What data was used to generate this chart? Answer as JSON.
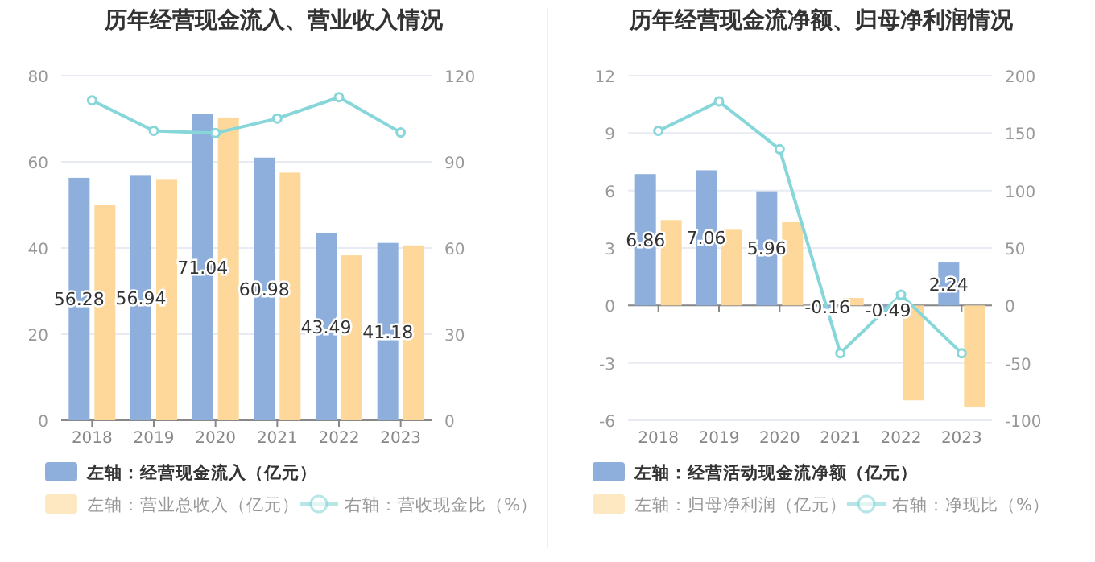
{
  "chart_data": [
    {
      "type": "bar",
      "title": "历年经营现金流入、营业收入情况",
      "categories": [
        "2018",
        "2019",
        "2020",
        "2021",
        "2022",
        "2023"
      ],
      "series": [
        {
          "name": "左轴：经营现金流入（亿元）",
          "color": "#8eaedc",
          "values": [
            56.28,
            56.94,
            71.04,
            60.98,
            43.49,
            41.18
          ],
          "value_labels": [
            "56.28",
            "56.94",
            "71.04",
            "60.98",
            "43.49",
            "41.18"
          ]
        },
        {
          "name": "左轴：营业总收入（亿元）",
          "color": "#fdd89a",
          "values": [
            50.0,
            56.0,
            70.3,
            57.5,
            38.3,
            40.6
          ]
        },
        {
          "name": "右轴：营收现金比（%）",
          "type": "line",
          "axis": "y2",
          "marker": "circle",
          "color": "#86d6da",
          "values": [
            111.4,
            100.8,
            100.0,
            105.1,
            112.5,
            100.2
          ]
        }
      ],
      "ylim": [
        0,
        80
      ],
      "yticks": [
        0,
        20,
        40,
        60,
        80
      ],
      "y2lim": [
        0,
        120
      ],
      "y2ticks": [
        0,
        30,
        60,
        90,
        120
      ],
      "grid": "y",
      "legend": "bottom"
    },
    {
      "type": "bar",
      "title": "历年经营现金流净额、归母净利润情况",
      "categories": [
        "2018",
        "2019",
        "2020",
        "2021",
        "2022",
        "2023"
      ],
      "series": [
        {
          "name": "左轴：经营活动现金流净额（亿元）",
          "color": "#8eaedc",
          "values": [
            6.86,
            7.06,
            5.96,
            -0.16,
            -0.49,
            2.24
          ],
          "value_labels": [
            "6.86",
            "7.06",
            "5.96",
            "-0.16",
            "-0.49",
            "2.24"
          ]
        },
        {
          "name": "左轴：归母净利润（亿元）",
          "color": "#fdd89a",
          "values": [
            4.46,
            3.95,
            4.35,
            0.39,
            -4.96,
            -5.33
          ]
        },
        {
          "name": "右轴：净现比（%）",
          "type": "line",
          "axis": "y2",
          "marker": "circle",
          "color": "#86d6da",
          "values": [
            152,
            177.6,
            136,
            -41.6,
            9.3,
            -41.6
          ]
        }
      ],
      "ylim": [
        -6,
        12
      ],
      "yticks": [
        -6,
        -3,
        0,
        3,
        6,
        9,
        12
      ],
      "y2lim": [
        -100,
        200
      ],
      "y2ticks": [
        -100,
        -50,
        0,
        50,
        100,
        150,
        200
      ],
      "grid": "y",
      "legend": "bottom"
    }
  ]
}
